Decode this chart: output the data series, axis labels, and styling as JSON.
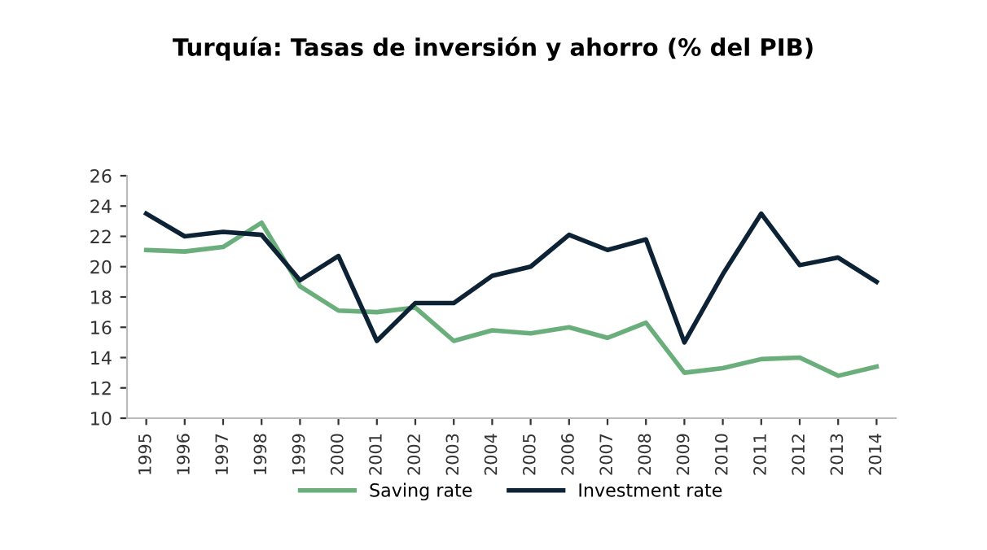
{
  "chart_data": {
    "type": "line",
    "title": "Turquía: Tasas de inversión y ahorro (% del PIB)",
    "categories": [
      "1995",
      "1996",
      "1997",
      "1998",
      "1999",
      "2000",
      "2001",
      "2002",
      "2003",
      "2004",
      "2005",
      "2006",
      "2007",
      "2008",
      "2009",
      "2010",
      "2011",
      "2012",
      "2013",
      "2014"
    ],
    "series": [
      {
        "name": "Saving rate",
        "color": "#6aae7c",
        "values": [
          21.1,
          21.0,
          21.3,
          22.9,
          18.7,
          17.1,
          17.0,
          17.3,
          15.1,
          15.8,
          15.6,
          16.0,
          15.3,
          16.3,
          13.0,
          13.3,
          13.9,
          14.0,
          12.8,
          13.4
        ]
      },
      {
        "name": "Investment rate",
        "color": "#0d2234",
        "values": [
          23.5,
          22.0,
          22.3,
          22.1,
          19.1,
          20.7,
          15.1,
          17.6,
          17.6,
          19.4,
          20.0,
          22.1,
          21.1,
          21.8,
          15.0,
          19.5,
          23.5,
          20.1,
          20.6,
          19.0
        ]
      }
    ],
    "ylim": [
      10,
      26
    ],
    "yticks": [
      10,
      12,
      14,
      16,
      18,
      20,
      22,
      24,
      26
    ],
    "grid": false,
    "legend": "bottom",
    "marker": "none",
    "line_style": "solid"
  }
}
